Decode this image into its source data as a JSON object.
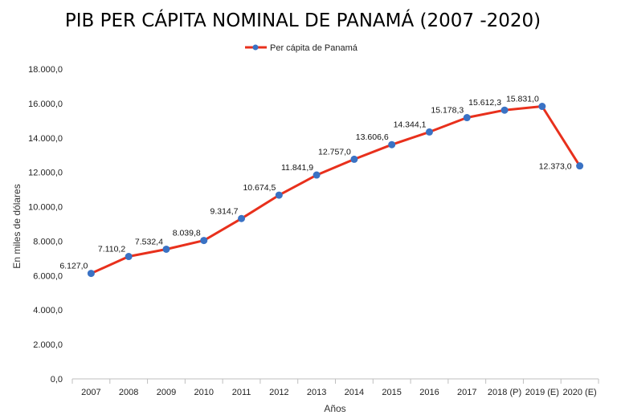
{
  "chart_data": {
    "type": "line",
    "title": "PIB PER CÁPITA NOMINAL DE PANAMÁ (2007  -2020)",
    "xlabel": "Años",
    "ylabel": "En miles de dólares",
    "ylim": [
      0,
      18000
    ],
    "yticks": [
      "0,0",
      "2.000,0",
      "4.000,0",
      "6.000,0",
      "8.000,0",
      "10.000,0",
      "12.000,0",
      "14.000,0",
      "16.000,0",
      "18.000,0"
    ],
    "categories": [
      "2007",
      "2008",
      "2009",
      "2010",
      "2011",
      "2012",
      "2013",
      "2014",
      "2015",
      "2016",
      "2017",
      "2018 (P)",
      "2019 (E)",
      "2020 (E)"
    ],
    "series": [
      {
        "name": "Per cápita de Panamá",
        "values": [
          6127.0,
          7110.2,
          7532.4,
          8039.8,
          9314.7,
          10674.5,
          11841.9,
          12757.0,
          13606.6,
          14344.1,
          15178.3,
          15612.3,
          15831.0,
          12373.0
        ],
        "labels": [
          "6.127,0",
          "7.110,2",
          "7.532,4",
          "8.039,8",
          "9.314,7",
          "10.674,5",
          "11.841,9",
          "12.757,0",
          "13.606,6",
          "14.344,1",
          "15.178,3",
          "15.612,3",
          "15.831,0",
          "12.373,0"
        ],
        "line_color": "#e8301c",
        "marker_color": "#3a72c4"
      }
    ],
    "legend": "top-center",
    "grid": false
  }
}
